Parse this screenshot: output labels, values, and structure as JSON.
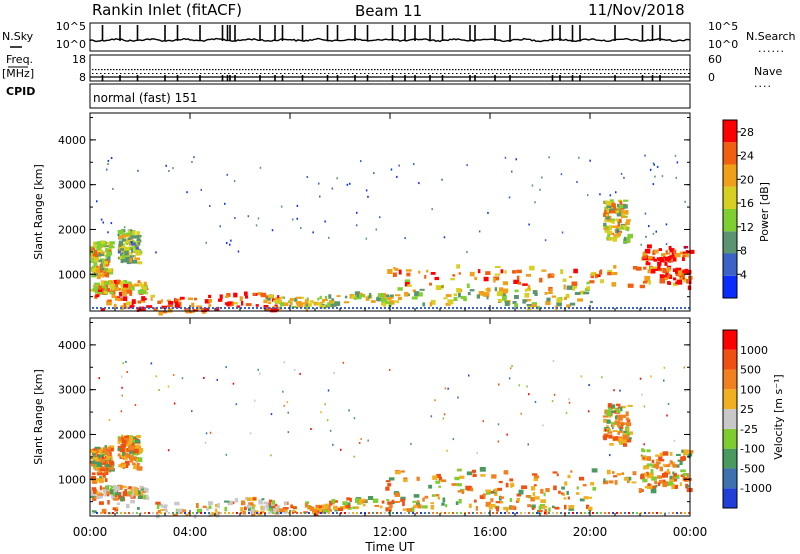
{
  "header": {
    "station": "Rankin Inlet (fitACF)",
    "beam": "Beam 11",
    "date": "11/Nov/2018"
  },
  "left_labels": {
    "nsky": "N.Sky",
    "freq": "Freq.",
    "freq_unit": "[MHz]",
    "cpid": "CPID"
  },
  "right_labels": {
    "nsearch": "N.Search",
    "nave": "Nave"
  },
  "cpid_text": "normal (fast) 151",
  "chart_data": [
    {
      "type": "line",
      "panel": "noise",
      "y_left_ticks": [
        "10^5",
        "10^0"
      ],
      "y_right_ticks": [
        "10^5",
        "10^0"
      ],
      "series": [
        {
          "name": "N.Sky"
        },
        {
          "name": "N.Search"
        }
      ]
    },
    {
      "type": "line",
      "panel": "frequency",
      "y_left_ticks": [
        "18",
        "8"
      ],
      "y_right_ticks": [
        "60",
        "0"
      ],
      "series": [
        {
          "name": "Freq."
        },
        {
          "name": "Nave"
        }
      ]
    },
    {
      "type": "heatmap",
      "panel": "power",
      "ylabel": "Slant Range [km]",
      "ylim": [
        180,
        4600
      ],
      "y_ticks": [
        "1000",
        "2000",
        "3000",
        "4000"
      ],
      "colorbar": {
        "label": "Power [dB]",
        "range": [
          0,
          30
        ],
        "ticks": [
          "4",
          "8",
          "12",
          "16",
          "20",
          "24",
          "28"
        ],
        "colors": [
          "#0a2cff",
          "#3a62c8",
          "#5b9470",
          "#7fcf32",
          "#d8d020",
          "#f0a018",
          "#f06010",
          "#ff0000"
        ]
      }
    },
    {
      "type": "heatmap",
      "panel": "velocity",
      "ylabel": "Slant Range [km]",
      "ylim": [
        180,
        4600
      ],
      "y_ticks": [
        "1000",
        "2000",
        "3000",
        "4000"
      ],
      "colorbar": {
        "label": "Velocity [m s⁻¹]",
        "ticks": [
          "1000",
          "500",
          "100",
          "25",
          "-25",
          "-100",
          "-500",
          "-1000"
        ],
        "colors": [
          "#1f3fd8",
          "#3f70b0",
          "#4a9a60",
          "#7fcc30",
          "#c8c8c8",
          "#f0b020",
          "#f08020",
          "#f05010",
          "#ff0000"
        ]
      }
    }
  ],
  "x_axis": {
    "label": "Time UT",
    "ticks": [
      "00:00",
      "04:00",
      "08:00",
      "12:00",
      "16:00",
      "20:00",
      "00:00"
    ],
    "range_hours": [
      0,
      24
    ]
  }
}
